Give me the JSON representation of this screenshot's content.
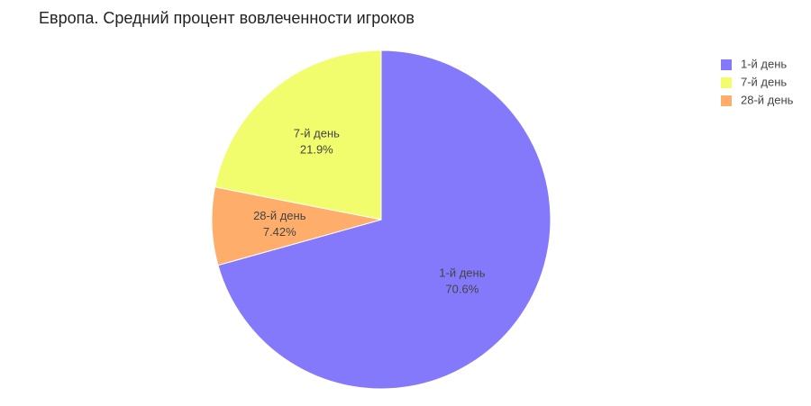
{
  "chart_data": {
    "type": "pie",
    "title": "Европа. Средний процент вовлеченности игроков",
    "categories": [
      "1-й день",
      "7-й день",
      "28-й день"
    ],
    "values": [
      70.6,
      21.9,
      7.42
    ],
    "value_labels": [
      "70.6%",
      "21.9%",
      "7.42%"
    ],
    "colors": [
      "#8479fb",
      "#f2fd6d",
      "#feae6a"
    ],
    "legend": "top-right"
  }
}
